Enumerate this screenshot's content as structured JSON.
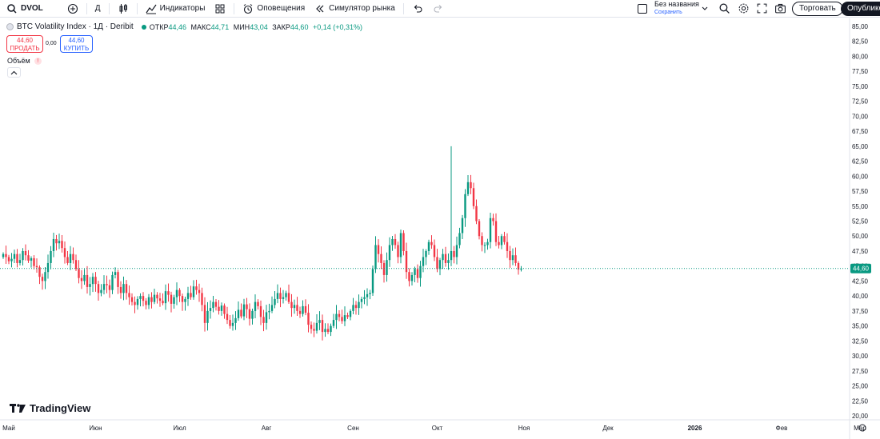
{
  "toolbar": {
    "symbol": "DVOL",
    "interval": "Д",
    "indicators": "Индикаторы",
    "alerts": "Оповещения",
    "replay": "Симулятор рынка",
    "layout_name": "Без названия",
    "layout_status": "Сохранить",
    "trade": "Торговать",
    "publish": "Опубликов"
  },
  "legend": {
    "title": "BTC Volatility Index · 1Д · Deribit",
    "o_label": "ОТКР",
    "o": "44,46",
    "h_label": "МАКС",
    "h": "44,71",
    "l_label": "МИН",
    "l": "43,04",
    "c_label": "ЗАКР",
    "c": "44,60",
    "change": "+0,14 (+0,31%)",
    "sell_price": "44,60",
    "sell_label": "ПРОДАТЬ",
    "spread": "0,00",
    "buy_price": "44,60",
    "buy_label": "КУПИТЬ",
    "volume_label": "Объём"
  },
  "watermark": "TradingView",
  "colors": {
    "up": "#089981",
    "down": "#f23645",
    "price_line": "#089981",
    "grid": "#f0f3fa"
  },
  "chart_data": {
    "type": "candlestick",
    "title": "BTC Volatility Index · 1Д · Deribit",
    "x_labels": [
      "Май",
      "Июн",
      "Июл",
      "Авг",
      "Сен",
      "Окт",
      "Ноя",
      "Дек",
      "2026",
      "Фев",
      "Мар"
    ],
    "y_ticks": [
      "85,00",
      "82,50",
      "80,00",
      "77,50",
      "75,00",
      "72,50",
      "70,00",
      "67,50",
      "65,00",
      "62,50",
      "60,00",
      "57,50",
      "55,00",
      "52,50",
      "50,00",
      "47,50",
      "45,00",
      "42,50",
      "40,00",
      "37,50",
      "35,00",
      "32,50",
      "30,00",
      "27,50",
      "25,00",
      "22,50",
      "20,00"
    ],
    "ylim": [
      20,
      85
    ],
    "last_price": 44.6,
    "last_price_label": "44,60",
    "start_date": "2025-04-29",
    "close": [
      47.0,
      46.5,
      45.8,
      46.2,
      47.0,
      45.5,
      46.0,
      47.5,
      46.8,
      45.9,
      46.3,
      45.0,
      44.8,
      43.2,
      42.5,
      44.0,
      45.5,
      47.5,
      49.5,
      48.8,
      49.2,
      48.0,
      46.5,
      45.5,
      47.0,
      46.0,
      44.5,
      43.0,
      42.5,
      43.5,
      41.5,
      42.0,
      43.2,
      42.0,
      40.5,
      41.0,
      42.0,
      41.8,
      41.0,
      43.5,
      44.0,
      41.5,
      40.5,
      42.0,
      40.5,
      39.8,
      39.0,
      38.5,
      39.5,
      40.0,
      39.2,
      38.5,
      39.8,
      39.0,
      40.2,
      39.6,
      39.2,
      38.8,
      40.8,
      40.2,
      38.7,
      39.8,
      41.0,
      40.0,
      39.0,
      39.5,
      40.5,
      39.8,
      41.6,
      41.0,
      40.5,
      38.5,
      35.5,
      37.5,
      38.0,
      39.0,
      38.2,
      37.5,
      38.4,
      37.0,
      36.0,
      35.0,
      35.5,
      36.3,
      37.7,
      36.6,
      38.6,
      37.8,
      36.2,
      37.5,
      39.0,
      38.3,
      36.5,
      35.5,
      37.3,
      37.5,
      38.5,
      39.5,
      40.5,
      39.5,
      39.8,
      40.5,
      39.0,
      38.0,
      38.5,
      37.5,
      37.0,
      38.3,
      37.2,
      35.2,
      34.5,
      34.2,
      35.5,
      36.0,
      34.0,
      34.5,
      34.0,
      35.0,
      36.0,
      37.0,
      36.5,
      35.8,
      36.8,
      36.5,
      37.5,
      38.5,
      38.0,
      39.0,
      39.5,
      39.8,
      40.3,
      40.5,
      44.5,
      48.5,
      47.0,
      45.5,
      43.5,
      46.0,
      48.5,
      49.5,
      48.5,
      46.5,
      50.5,
      47.5,
      44.0,
      42.5,
      43.5,
      44.5,
      43.0,
      45.0,
      46.5,
      47.5,
      49.0,
      48.5,
      46.5,
      44.5,
      46.0,
      47.0,
      45.5,
      46.0,
      47.5,
      46.5,
      48.5,
      50.5,
      53.0,
      57.0,
      59.0,
      58.0,
      55.0,
      52.5,
      50.0,
      48.5,
      48.5,
      49.0,
      53.0,
      52.5,
      49.0,
      48.5,
      50.0,
      49.0,
      47.5,
      46.0,
      46.8,
      45.5,
      44.4,
      44.6
    ],
    "_note_x_axis_month_starts": "x tick positions correspond to first day of each month"
  }
}
